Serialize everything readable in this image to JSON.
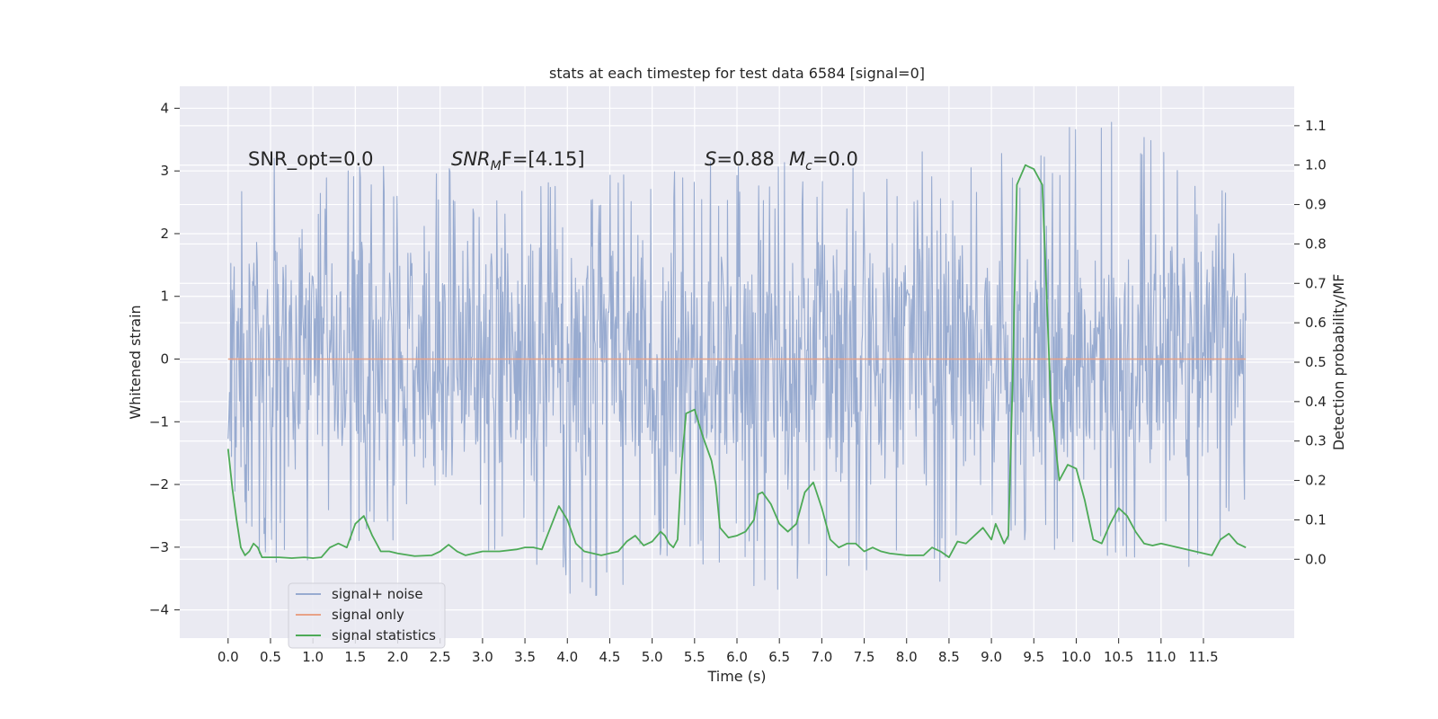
{
  "chart_data": {
    "type": "line",
    "title": "stats at each timestep for test data 6584 [signal=0]",
    "xlabel": "Time (s)",
    "ylabel_left": "Whitened strain",
    "ylabel_right": "Detection probability/MF",
    "xlim": [
      -0.57,
      12.57
    ],
    "ylim_left": [
      -4.45,
      4.35
    ],
    "ylim_right": [
      -0.2,
      1.2
    ],
    "grid": true,
    "x_ticks": [
      "0.0",
      "0.5",
      "1.0",
      "1.5",
      "2.0",
      "2.5",
      "3.0",
      "3.5",
      "4.0",
      "4.5",
      "5.0",
      "5.5",
      "6.0",
      "6.5",
      "7.0",
      "7.5",
      "8.0",
      "8.5",
      "9.0",
      "9.5",
      "10.0",
      "10.5",
      "11.0",
      "11.5"
    ],
    "y_ticks_left": [
      "4",
      "3",
      "2",
      "1",
      "0",
      "−1",
      "−2",
      "−3",
      "−4"
    ],
    "y_ticks_right": [
      "1.1",
      "1.0",
      "0.9",
      "0.8",
      "0.7",
      "0.6",
      "0.5",
      "0.4",
      "0.3",
      "0.2",
      "0.1",
      "0.0"
    ],
    "annotations": {
      "snr_opt": "SNR_opt=0.0",
      "snr_mf_name": "SNR",
      "snr_mf_sub": "M",
      "snr_mf_rest": "F=[4.15]",
      "s_name": "S",
      "s_rest": "=0.88",
      "mc_name": "M",
      "mc_sub": "c",
      "mc_rest": "=0.0"
    },
    "legend_position": "lower left",
    "series": [
      {
        "name": "signal+ noise",
        "axis": "left",
        "color": "#98abd0",
        "description_kind": "dense noise band",
        "x_range": [
          0.0,
          12.0
        ],
        "envelope_upper": [
          [
            0.0,
            2.5
          ],
          [
            0.3,
            3.6
          ],
          [
            1.0,
            2.9
          ],
          [
            2.0,
            3.2
          ],
          [
            3.0,
            3.0
          ],
          [
            4.0,
            3.2
          ],
          [
            5.0,
            3.1
          ],
          [
            6.0,
            3.2
          ],
          [
            7.0,
            3.1
          ],
          [
            8.0,
            3.3
          ],
          [
            9.0,
            3.4
          ],
          [
            9.9,
            3.8
          ],
          [
            10.5,
            3.9
          ],
          [
            11.0,
            3.4
          ],
          [
            12.0,
            2.5
          ]
        ],
        "envelope_lower": [
          [
            0.0,
            -2.1
          ],
          [
            0.3,
            -3.3
          ],
          [
            1.0,
            -3.2
          ],
          [
            2.0,
            -2.9
          ],
          [
            3.0,
            -3.0
          ],
          [
            4.5,
            -4.1
          ],
          [
            5.0,
            -3.3
          ],
          [
            6.0,
            -3.3
          ],
          [
            6.3,
            -3.8
          ],
          [
            7.0,
            -3.6
          ],
          [
            7.6,
            -4.0
          ],
          [
            8.0,
            -3.3
          ],
          [
            8.5,
            -3.8
          ],
          [
            9.0,
            -3.2
          ],
          [
            10.0,
            -3.5
          ],
          [
            11.0,
            -3.3
          ],
          [
            11.5,
            -3.6
          ],
          [
            12.0,
            -2.2
          ]
        ],
        "typical_band": [
          -2.0,
          2.0
        ]
      },
      {
        "name": "signal only",
        "axis": "left",
        "color": "#e8a287",
        "x": [
          0.0,
          12.0
        ],
        "values": [
          0.0,
          0.0
        ]
      },
      {
        "name": "signal statistics",
        "axis": "right",
        "color": "#4daa57",
        "x": [
          0.0,
          0.05,
          0.1,
          0.15,
          0.2,
          0.25,
          0.3,
          0.35,
          0.4,
          0.5,
          0.6,
          0.75,
          0.9,
          1.0,
          1.1,
          1.2,
          1.3,
          1.4,
          1.5,
          1.6,
          1.7,
          1.8,
          1.9,
          2.0,
          2.2,
          2.4,
          2.5,
          2.6,
          2.7,
          2.8,
          3.0,
          3.2,
          3.4,
          3.5,
          3.6,
          3.7,
          3.8,
          3.9,
          4.0,
          4.1,
          4.2,
          4.4,
          4.6,
          4.7,
          4.8,
          4.9,
          5.0,
          5.1,
          5.15,
          5.2,
          5.25,
          5.3,
          5.35,
          5.4,
          5.5,
          5.6,
          5.7,
          5.75,
          5.8,
          5.9,
          6.0,
          6.1,
          6.2,
          6.25,
          6.3,
          6.4,
          6.5,
          6.6,
          6.7,
          6.8,
          6.9,
          7.0,
          7.1,
          7.2,
          7.3,
          7.4,
          7.5,
          7.6,
          7.7,
          7.8,
          8.0,
          8.2,
          8.3,
          8.4,
          8.5,
          8.6,
          8.7,
          8.8,
          8.9,
          9.0,
          9.05,
          9.1,
          9.15,
          9.2,
          9.25,
          9.3,
          9.4,
          9.5,
          9.6,
          9.7,
          9.8,
          9.9,
          10.0,
          10.1,
          10.2,
          10.3,
          10.4,
          10.5,
          10.6,
          10.7,
          10.8,
          10.9,
          11.0,
          11.2,
          11.4,
          11.6,
          11.7,
          11.8,
          11.9,
          12.0
        ],
        "values": [
          0.28,
          0.18,
          0.1,
          0.03,
          0.01,
          0.02,
          0.04,
          0.03,
          0.005,
          0.005,
          0.005,
          0.003,
          0.005,
          0.003,
          0.005,
          0.03,
          0.04,
          0.03,
          0.09,
          0.11,
          0.06,
          0.02,
          0.02,
          0.015,
          0.008,
          0.01,
          0.02,
          0.037,
          0.02,
          0.01,
          0.02,
          0.02,
          0.025,
          0.03,
          0.03,
          0.025,
          0.08,
          0.135,
          0.1,
          0.04,
          0.02,
          0.01,
          0.02,
          0.045,
          0.06,
          0.035,
          0.045,
          0.07,
          0.06,
          0.04,
          0.03,
          0.05,
          0.25,
          0.37,
          0.38,
          0.31,
          0.25,
          0.19,
          0.08,
          0.055,
          0.06,
          0.07,
          0.1,
          0.165,
          0.17,
          0.14,
          0.09,
          0.07,
          0.09,
          0.17,
          0.195,
          0.13,
          0.05,
          0.03,
          0.04,
          0.04,
          0.02,
          0.03,
          0.02,
          0.015,
          0.01,
          0.01,
          0.03,
          0.02,
          0.005,
          0.045,
          0.04,
          0.06,
          0.08,
          0.05,
          0.09,
          0.065,
          0.04,
          0.06,
          0.45,
          0.95,
          1.0,
          0.99,
          0.95,
          0.4,
          0.2,
          0.24,
          0.23,
          0.15,
          0.05,
          0.04,
          0.09,
          0.13,
          0.11,
          0.07,
          0.04,
          0.035,
          0.04,
          0.03,
          0.02,
          0.01,
          0.05,
          0.065,
          0.04,
          0.03
        ]
      }
    ]
  }
}
